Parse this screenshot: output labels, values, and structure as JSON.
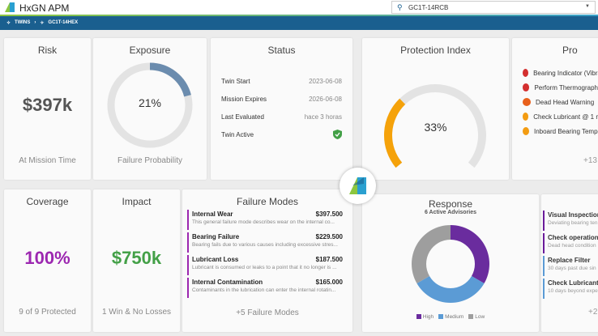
{
  "header": {
    "app_title": "HxGN APM",
    "search_value": "GC1T-14RCB"
  },
  "breadcrumb": [
    "TWINS",
    "GC1T-14HEX"
  ],
  "risk": {
    "title": "Risk",
    "value": "$397k",
    "caption": "At Mission Time"
  },
  "exposure": {
    "title": "Exposure",
    "value": "21%",
    "percent": 21,
    "caption": "Failure Probability",
    "color": "#6b8cae"
  },
  "status": {
    "title": "Status",
    "rows": [
      {
        "label": "Twin Start",
        "value": "2023-06-08"
      },
      {
        "label": "Mission Expires",
        "value": "2026-06-08"
      },
      {
        "label": "Last Evaluated",
        "value": "hace 3 horas"
      },
      {
        "label": "Twin Active",
        "value": ""
      }
    ]
  },
  "protection": {
    "title": "Protection Index",
    "value": "33%",
    "percent": 33,
    "color": "#f5a20a"
  },
  "protection_list": {
    "title": "Pro",
    "items": [
      {
        "label": "Bearing Indicator (Vibra",
        "color": "#d32f2f"
      },
      {
        "label": "Perform Thermography",
        "color": "#d32f2f"
      },
      {
        "label": "Dead Head Warning",
        "color": "#e8601c"
      },
      {
        "label": "Check Lubricant @ 1 m",
        "color": "#f39c12"
      },
      {
        "label": "Inboard Bearing Tempe",
        "color": "#f39c12"
      }
    ],
    "more": "+13"
  },
  "coverage": {
    "title": "Coverage",
    "value": "100%",
    "caption": "9 of 9 Protected",
    "color": "#9c27b0"
  },
  "impact": {
    "title": "Impact",
    "value": "$750k",
    "caption": "1 Win & No Losses",
    "color": "#43a047"
  },
  "failure_modes": {
    "title": "Failure Modes",
    "items": [
      {
        "name": "Internal Wear",
        "value": "$397.500",
        "desc": "This general failure mode describes wear on the internal co..."
      },
      {
        "name": "Bearing Failure",
        "value": "$229.500",
        "desc": "Bearing fails due to various causes including excessive stres..."
      },
      {
        "name": "Lubricant Loss",
        "value": "$187.500",
        "desc": "Lubricant is consumed or leaks to a point that it no longer is ..."
      },
      {
        "name": "Internal Contamination",
        "value": "$165.000",
        "desc": "Contaminants in the lubrication can enter the internal rotatin..."
      }
    ],
    "more": "+5 Failure Modes"
  },
  "response": {
    "title": "Response",
    "subtitle": "6 Active Advisories"
  },
  "chart_data": {
    "type": "pie",
    "donut": true,
    "categories": [
      "High",
      "Medium",
      "Low"
    ],
    "values": [
      2,
      2,
      2
    ],
    "colors": [
      "#6a2c9e",
      "#5b9bd5",
      "#9e9e9e"
    ],
    "legend": "bottom"
  },
  "advisories": {
    "items": [
      {
        "title": "Visual Inspection",
        "desc": "Deviating bearing ten",
        "color": "#6a1b9a"
      },
      {
        "title": "Check operational",
        "desc": "Dead head condition",
        "color": "#6a1b9a"
      },
      {
        "title": "Replace Filter",
        "desc": "30 days past due sin",
        "color": "#5b9bd5"
      },
      {
        "title": "Check Lubricant",
        "desc": "10 days beyond expe",
        "color": "#5b9bd5"
      }
    ],
    "more": "+2"
  }
}
